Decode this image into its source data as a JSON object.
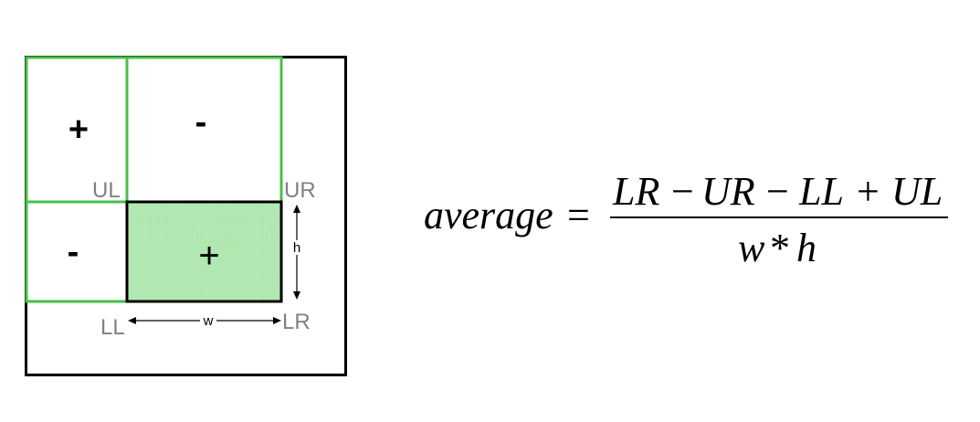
{
  "colors": {
    "region_outline": "#45c245",
    "frame": "#000000",
    "fill": "#b8ecb8",
    "fill_texture": "#9ad89a",
    "corner_label": "#808080"
  },
  "regions": {
    "upper_left_sign": "+",
    "upper_right_sign": "-",
    "lower_left_sign": "-",
    "target_sign": "+"
  },
  "corners": {
    "ul": "UL",
    "ur": "UR",
    "ll": "LL",
    "lr": "LR"
  },
  "dimensions": {
    "width": "w",
    "height": "h"
  },
  "formula": {
    "lhs": "average",
    "equals": "=",
    "numerator": {
      "t1": "LR",
      "op1": "−",
      "t2": "UR",
      "op2": "−",
      "t3": "LL",
      "op3": "+",
      "t4": "UL"
    },
    "denominator": {
      "d1": "w",
      "op": "*",
      "d2": "h"
    }
  }
}
